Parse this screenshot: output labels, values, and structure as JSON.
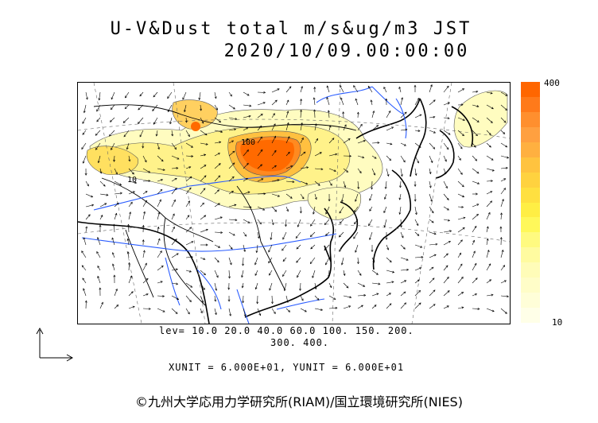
{
  "title": {
    "line1": "U-V&Dust total m/s&ug/m3 JST",
    "line2": "2020/10/09.00:00:00"
  },
  "colorbar": {
    "max_label": "400",
    "min_label": "10",
    "colors": [
      "#ff6600",
      "#ff7a1a",
      "#ff8f2e",
      "#ffa040",
      "#ffb040",
      "#ffc33f",
      "#ffd23f",
      "#ffe040",
      "#ffee44",
      "#fff85a",
      "#fffa80",
      "#fffba0",
      "#fffcb8",
      "#fffdc8",
      "#fffed8",
      "#ffffe8"
    ]
  },
  "levels": {
    "line1": "lev= 10.0 20.0 40.0 60.0 100. 150. 200.",
    "line2": "300. 400."
  },
  "units_text": "XUNIT = 6.000E+01, YUNIT = 6.000E+01",
  "contour_labels": [
    "100",
    "10"
  ],
  "copyright": "©九州大学応用力学研究所(RIAM)/国立環境研究所(NIES)"
}
